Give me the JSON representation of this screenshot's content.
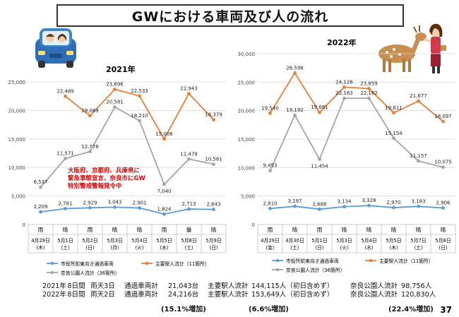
{
  "title": "GWにおける車両及び人の流れ",
  "page_number": "37",
  "colors": {
    "cars": "#5b9bd5",
    "station": "#ed7d31",
    "park": "#a5a5a5",
    "note": "#e00000"
  },
  "chart_data": [
    {
      "type": "line",
      "title": "2021年",
      "ylim": [
        0,
        25000
      ],
      "yticks": [
        "0",
        "5,000",
        "10,000",
        "15,000",
        "20,000",
        "25,000"
      ],
      "weather": [
        "雨",
        "晴",
        "雨",
        "晴",
        "晴",
        "雨",
        "曇",
        "晴"
      ],
      "categories": [
        "4月29日\n(木)",
        "5月1日\n(土)",
        "5月2日\n(日)",
        "5月3日\n(月)",
        "5月4日\n(火)",
        "5月5日\n(水)",
        "5月8日\n(土)",
        "5月9日\n(日)"
      ],
      "series": [
        {
          "name": "市役所前東向き通過車両",
          "values": [
            2209,
            2781,
            2929,
            3043,
            2901,
            1824,
            2713,
            2643
          ],
          "labels": [
            "2,209",
            "2,781",
            "2,929",
            "3,043",
            "2,901",
            "1,824",
            "2,713",
            "2,643"
          ]
        },
        {
          "name": "主要駅人流計（11箇所）",
          "values": [
            null,
            22489,
            19069,
            23696,
            22533,
            15006,
            22943,
            18379
          ],
          "labels": [
            null,
            "22,489",
            "19,069",
            "23,696",
            "22,533",
            "15,006",
            "22,943",
            "18,379"
          ]
        },
        {
          "name": "奈良公園人流計（36箇所）",
          "values": [
            6537,
            11571,
            12778,
            20581,
            18210,
            7040,
            11478,
            10561
          ],
          "labels": [
            "6,537",
            "11,571",
            "12,778",
            "20,581",
            "18,210",
            "7,040",
            "11,478",
            "10,561"
          ]
        }
      ],
      "annotation": [
        "大阪府、京都府、兵庫県に",
        "緊急事態宣言、奈良市にGW",
        "特別警戒警報発令中"
      ]
    },
    {
      "type": "line",
      "title": "2022年",
      "ylim": [
        0,
        30000
      ],
      "yticks": [
        "0",
        "5,000",
        "10,000",
        "15,000",
        "20,000",
        "25,000",
        "30,000"
      ],
      "weather": [
        "雨",
        "晴",
        "雨",
        "晴",
        "晴",
        "晴",
        "晴",
        "晴"
      ],
      "categories": [
        "4月29日\n(金)",
        "4月30日\n(土)",
        "5月1日\n(日)",
        "5月3日\n(火)",
        "5月4日\n(水)",
        "5月5日\n(木)",
        "5月7日\n(土)",
        "5月8日\n(日)"
      ],
      "series": [
        {
          "name": "市役所前東向き通過車両",
          "values": [
            2810,
            3197,
            2688,
            3134,
            3328,
            2970,
            3183,
            2906
          ],
          "labels": [
            "2,810",
            "3,197",
            "2,688",
            "3,134",
            "3,328",
            "2,970",
            "3,183",
            "2,906"
          ]
        },
        {
          "name": "主要駅人流計（11箇所）",
          "values": [
            19540,
            26598,
            19681,
            24126,
            23859,
            19611,
            21677,
            18097
          ],
          "labels": [
            "19,540",
            "26,598",
            "19,681",
            "24,126",
            "23,859",
            "19,611",
            "21,677",
            "18,097"
          ]
        },
        {
          "name": "奈良公園人流計（36箇所）",
          "values": [
            9453,
            19192,
            11454,
            22163,
            22182,
            15154,
            11157,
            10075
          ],
          "labels": [
            "9,453",
            "19,192",
            "11,454",
            "22,163",
            "22,182",
            "15,154",
            "11,157",
            "10,075"
          ]
        }
      ]
    }
  ],
  "summary": [
    [
      "2021年",
      "8日間",
      "雨天3日",
      "通過車両計",
      "21,043台",
      "主要駅人流計",
      "144,115人（初日含めず）",
      "奈良公園人流計",
      "98,756人"
    ],
    [
      "2022年",
      "8日間",
      "雨天2日",
      "通過車両計",
      "24,216台",
      "主要駅人流計",
      "153,649人（初日含めず）",
      "奈良公園人流計",
      "120,830人"
    ]
  ],
  "increases": [
    "(15.1%増加)",
    "(6.6%増加)",
    "(22.4%増加)"
  ]
}
